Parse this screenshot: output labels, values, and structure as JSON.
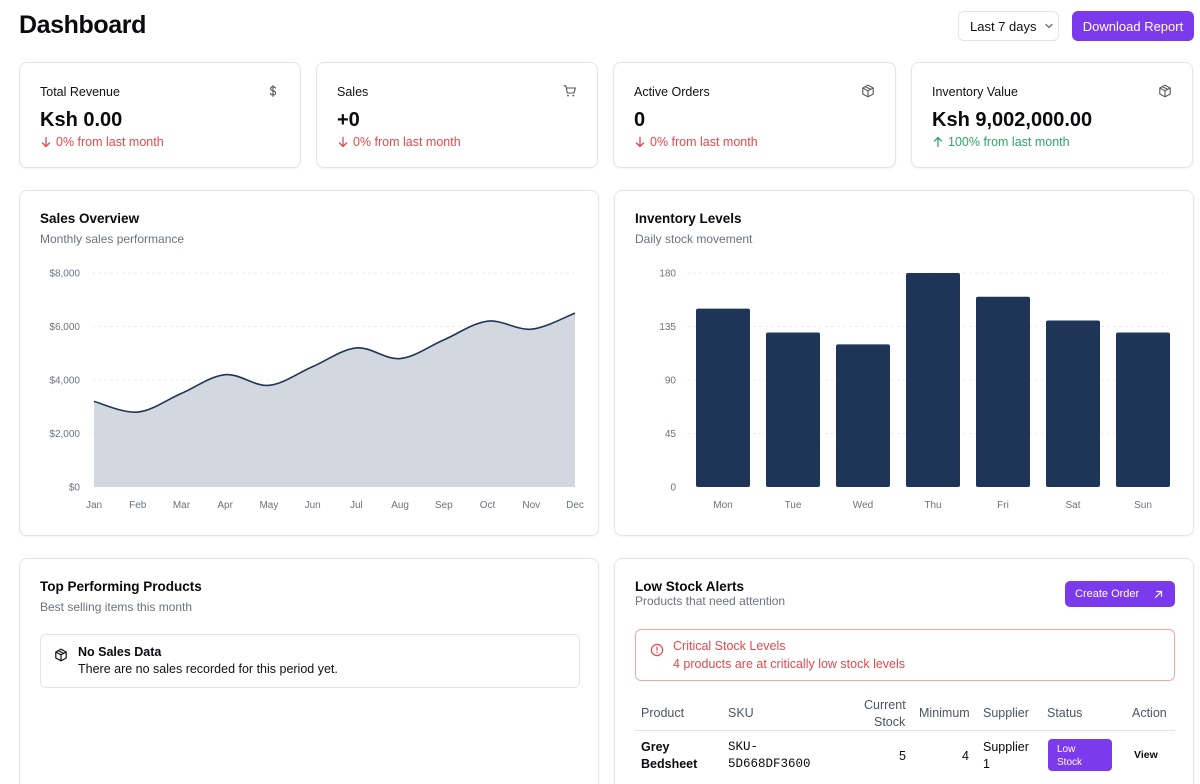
{
  "header": {
    "title": "Dashboard",
    "range_label": "Last 7 days",
    "download_label": "Download Report"
  },
  "stats": [
    {
      "title": "Total Revenue",
      "value": "Ksh 0.00",
      "change": "0% from last month",
      "trend": "down",
      "icon": "dollar-icon"
    },
    {
      "title": "Sales",
      "value": "+0",
      "change": "0% from last month",
      "trend": "down",
      "icon": "cart-icon"
    },
    {
      "title": "Active Orders",
      "value": "0",
      "change": "0% from last month",
      "trend": "down",
      "icon": "package-icon"
    },
    {
      "title": "Inventory Value",
      "value": "Ksh 9,002,000.00",
      "change": "100% from last month",
      "trend": "up",
      "icon": "package-icon"
    }
  ],
  "sales_overview": {
    "title": "Sales Overview",
    "subtitle": "Monthly sales performance"
  },
  "inventory_levels": {
    "title": "Inventory Levels",
    "subtitle": "Daily stock movement"
  },
  "chart_data": [
    {
      "type": "area",
      "title": "Sales Overview",
      "categories": [
        "Jan",
        "Feb",
        "Mar",
        "Apr",
        "May",
        "Jun",
        "Jul",
        "Aug",
        "Sep",
        "Oct",
        "Nov",
        "Dec"
      ],
      "values": [
        3200,
        2800,
        3500,
        4200,
        3800,
        4500,
        5200,
        4800,
        5500,
        6200,
        5900,
        6500
      ],
      "ylim": [
        0,
        8000
      ],
      "yticks": [
        "$0",
        "$2,000",
        "$4,000",
        "$6,000",
        "$8,000"
      ],
      "ytick_values": [
        0,
        2000,
        4000,
        6000,
        8000
      ]
    },
    {
      "type": "bar",
      "title": "Inventory Levels",
      "categories": [
        "Mon",
        "Tue",
        "Wed",
        "Thu",
        "Fri",
        "Sat",
        "Sun"
      ],
      "values": [
        150,
        130,
        120,
        180,
        160,
        140,
        130
      ],
      "ylim": [
        0,
        180
      ],
      "yticks": [
        "0",
        "45",
        "90",
        "135",
        "180"
      ],
      "ytick_values": [
        0,
        45,
        90,
        135,
        180
      ]
    }
  ],
  "colors": {
    "accent": "#7c3aed",
    "chart_line": "#1e3557",
    "chart_fill": "#d1d6de",
    "bar": "#1e3557",
    "down": "#e5484d",
    "up": "#30a46c"
  },
  "top_products": {
    "title": "Top Performing Products",
    "subtitle": "Best selling items this month",
    "empty_title": "No Sales Data",
    "empty_text": "There are no sales recorded for this period yet."
  },
  "low_stock": {
    "title": "Low Stock Alerts",
    "subtitle": "Products that need attention",
    "create_label": "Create Order",
    "alert_title": "Critical Stock Levels",
    "alert_text": "4 products are at critically low stock levels",
    "columns": {
      "product": "Product",
      "sku": "SKU",
      "current_1": "Current",
      "current_2": "Stock",
      "minimum": "Minimum",
      "supplier": "Supplier",
      "status": "Status",
      "action": "Action"
    },
    "rows": [
      {
        "product_1": "Grey",
        "product_2": "Bedsheet",
        "sku_1": "SKU-",
        "sku_2": "5D668DF3600",
        "current": "5",
        "minimum": "4",
        "supplier_1": "Supplier",
        "supplier_2": "1",
        "status_1": "Low",
        "status_2": "Stock",
        "action": "View"
      }
    ]
  }
}
